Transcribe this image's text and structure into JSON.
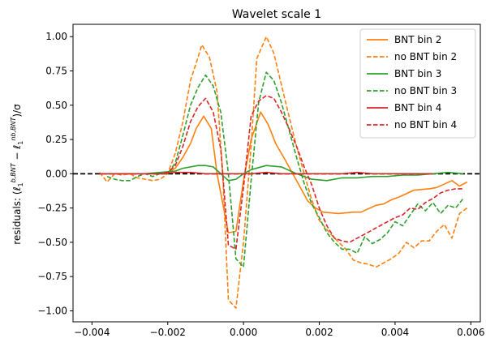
{
  "chart_data": {
    "type": "line",
    "title": "Wavelet scale 1",
    "xlabel": "",
    "ylabel": "residuals: (ℓ₁^{b,BNT} − ℓ₁^{nb,BNT})/σ",
    "ylabel_parts": {
      "prefix": "residuals: (",
      "ell1": "ℓ",
      "sub1": "1",
      "sup1": "b,BNT",
      "minus": " − ",
      "ell2": "ℓ",
      "sub2": "1",
      "sup2": "nb,BNT",
      "suffix": ")/σ"
    },
    "xlim": [
      -0.0045,
      0.00625
    ],
    "ylim": [
      -1.08,
      1.09
    ],
    "xticks": [
      -0.004,
      -0.002,
      0.0,
      0.002,
      0.004,
      0.006
    ],
    "xtick_labels": [
      "−0.004",
      "−0.002",
      "0.000",
      "0.002",
      "0.004",
      "0.006"
    ],
    "yticks": [
      -1.0,
      -0.75,
      -0.5,
      -0.25,
      0.0,
      0.25,
      0.5,
      0.75,
      1.0
    ],
    "ytick_labels": [
      "−1.00",
      "−0.75",
      "−0.50",
      "−0.25",
      "0.00",
      "0.25",
      "0.50",
      "0.75",
      "1.00"
    ],
    "grid": false,
    "legend_position": "top-right",
    "reference_line": {
      "y": 0.0,
      "style": "dashed",
      "color": "#000000"
    },
    "series": [
      {
        "name": "BNT bin 2",
        "color": "#ff7f0e",
        "style": "solid",
        "x": [
          -0.00205,
          -0.0018,
          -0.0016,
          -0.0014,
          -0.00125,
          -0.00105,
          -0.00085,
          -0.0007,
          -0.0004,
          -0.0002,
          0.0,
          0.0002,
          0.00045,
          0.00065,
          0.00085,
          0.0011,
          0.0013,
          0.0015,
          0.0017,
          0.0019,
          0.0021,
          0.0025,
          0.0029,
          0.0031,
          0.0035,
          0.0037,
          0.0039,
          0.0041,
          0.0045,
          0.0049,
          0.0051,
          0.0055,
          0.0057,
          0.0059
        ],
        "y": [
          0.0,
          0.04,
          0.12,
          0.22,
          0.33,
          0.42,
          0.33,
          0.0,
          -0.43,
          -0.42,
          -0.05,
          0.25,
          0.45,
          0.36,
          0.22,
          0.1,
          0.0,
          -0.1,
          -0.2,
          -0.25,
          -0.28,
          -0.29,
          -0.28,
          -0.28,
          -0.23,
          -0.22,
          -0.19,
          -0.17,
          -0.12,
          -0.11,
          -0.1,
          -0.05,
          -0.09,
          -0.06
        ]
      },
      {
        "name": "no BNT bin 2",
        "color": "#ff7f0e",
        "style": "dashed",
        "x": [
          -0.0038,
          -0.0036,
          -0.0034,
          -0.0032,
          -0.003,
          -0.0028,
          -0.0026,
          -0.0024,
          -0.0022,
          -0.002,
          -0.0018,
          -0.0016,
          -0.0014,
          -0.0012,
          -0.0011,
          -0.0009,
          -0.0007,
          -0.00055,
          -0.0004,
          -0.0002,
          0.0,
          0.0002,
          0.00035,
          0.0006,
          0.0008,
          0.001,
          0.0012,
          0.0014,
          0.0016,
          0.0018,
          0.002,
          0.0023,
          0.0027,
          0.0029,
          0.0031,
          0.0033,
          0.0035,
          0.0037,
          0.0039,
          0.0041,
          0.0043,
          0.0045,
          0.0047,
          0.0049,
          0.0051,
          0.0053,
          0.0055,
          0.0057,
          0.0059
        ],
        "y": [
          0.01,
          -0.06,
          0.0,
          -0.01,
          0.0,
          -0.03,
          -0.04,
          -0.05,
          -0.04,
          0.0,
          0.15,
          0.38,
          0.68,
          0.85,
          0.94,
          0.85,
          0.6,
          0.0,
          -0.92,
          -0.98,
          -0.5,
          0.2,
          0.84,
          1.0,
          0.88,
          0.65,
          0.42,
          0.2,
          0.0,
          -0.19,
          -0.34,
          -0.44,
          -0.55,
          -0.63,
          -0.65,
          -0.66,
          -0.68,
          -0.65,
          -0.62,
          -0.58,
          -0.5,
          -0.54,
          -0.49,
          -0.49,
          -0.42,
          -0.37,
          -0.47,
          -0.29,
          -0.25
        ]
      },
      {
        "name": "BNT bin 3",
        "color": "#2ca02c",
        "style": "solid",
        "x": [
          -0.0038,
          -0.0034,
          -0.003,
          -0.0026,
          -0.0022,
          -0.0018,
          -0.0016,
          -0.0012,
          -0.001,
          -0.0008,
          -0.0006,
          -0.0004,
          -0.0002,
          0.0,
          0.0002,
          0.0006,
          0.001,
          0.0014,
          0.0018,
          0.0022,
          0.0026,
          0.003,
          0.0034,
          0.0038,
          0.0042,
          0.0046,
          0.005,
          0.0054,
          0.0058
        ],
        "y": [
          0.0,
          0.0,
          0.0,
          0.0,
          0.01,
          0.02,
          0.04,
          0.06,
          0.06,
          0.05,
          0.0,
          -0.05,
          -0.04,
          0.0,
          0.03,
          0.06,
          0.05,
          0.0,
          -0.04,
          -0.05,
          -0.03,
          -0.03,
          -0.02,
          -0.02,
          -0.01,
          -0.01,
          0.0,
          0.01,
          0.0
        ]
      },
      {
        "name": "no BNT bin 3",
        "color": "#2ca02c",
        "style": "dashed",
        "x": [
          -0.0036,
          -0.0034,
          -0.0032,
          -0.003,
          -0.0028,
          -0.0026,
          -0.0024,
          -0.0022,
          -0.002,
          -0.0018,
          -0.0016,
          -0.0014,
          -0.0012,
          -0.001,
          -0.0008,
          -0.0006,
          -0.0004,
          -0.0002,
          0.0,
          0.0002,
          0.0004,
          0.0006,
          0.0008,
          0.001,
          0.0012,
          0.0014,
          0.0016,
          0.0018,
          0.002,
          0.0022,
          0.0024,
          0.0026,
          0.0028,
          0.003,
          0.0032,
          0.0034,
          0.0036,
          0.0038,
          0.004,
          0.0042,
          0.0044,
          0.0046,
          0.0048,
          0.005,
          0.0052,
          0.0054,
          0.0056,
          0.0058
        ],
        "y": [
          -0.02,
          -0.04,
          -0.05,
          -0.05,
          -0.02,
          0.0,
          -0.02,
          0.0,
          0.0,
          0.08,
          0.28,
          0.5,
          0.63,
          0.72,
          0.64,
          0.45,
          0.0,
          -0.62,
          -0.68,
          -0.05,
          0.52,
          0.74,
          0.68,
          0.52,
          0.32,
          0.12,
          -0.07,
          -0.22,
          -0.32,
          -0.43,
          -0.5,
          -0.55,
          -0.55,
          -0.58,
          -0.46,
          -0.51,
          -0.48,
          -0.43,
          -0.35,
          -0.38,
          -0.3,
          -0.22,
          -0.27,
          -0.21,
          -0.29,
          -0.23,
          -0.25,
          -0.18
        ]
      },
      {
        "name": "BNT bin 4",
        "color": "#d62728",
        "style": "solid",
        "x": [
          -0.0038,
          -0.0034,
          -0.003,
          -0.0026,
          -0.0022,
          -0.0018,
          -0.0014,
          -0.001,
          -0.0006,
          -0.0002,
          0.0002,
          0.0006,
          0.001,
          0.0014,
          0.0018,
          0.0022,
          0.0026,
          0.003,
          0.0034,
          0.0038,
          0.0042,
          0.0046,
          0.005
        ],
        "y": [
          0.0,
          0.0,
          0.0,
          0.0,
          0.0,
          0.01,
          0.01,
          0.0,
          0.0,
          0.0,
          0.0,
          0.01,
          0.0,
          0.0,
          0.0,
          0.0,
          0.0,
          0.01,
          0.0,
          0.0,
          0.0,
          0.0,
          0.0
        ]
      },
      {
        "name": "no BNT bin 4",
        "color": "#d62728",
        "style": "dashed",
        "x": [
          -0.0038,
          -0.0034,
          -0.003,
          -0.0026,
          -0.0022,
          -0.002,
          -0.0018,
          -0.0016,
          -0.0014,
          -0.0012,
          -0.001,
          -0.0008,
          -0.0006,
          -0.0004,
          -0.0002,
          0.0,
          0.0002,
          0.0004,
          0.0006,
          0.0008,
          0.001,
          0.0012,
          0.0014,
          0.0016,
          0.0018,
          0.002,
          0.0022,
          0.0024,
          0.0026,
          0.0028,
          0.003,
          0.0032,
          0.0034,
          0.0036,
          0.0038,
          0.004,
          0.0042,
          0.0044,
          0.0046,
          0.0048,
          0.005,
          0.0052,
          0.0054,
          0.0056,
          0.0058
        ],
        "y": [
          0.0,
          0.0,
          0.0,
          0.0,
          0.0,
          0.01,
          0.06,
          0.2,
          0.38,
          0.49,
          0.55,
          0.45,
          0.18,
          -0.52,
          -0.55,
          -0.1,
          0.42,
          0.53,
          0.57,
          0.55,
          0.45,
          0.33,
          0.2,
          0.05,
          -0.08,
          -0.25,
          -0.38,
          -0.47,
          -0.49,
          -0.5,
          -0.47,
          -0.44,
          -0.41,
          -0.38,
          -0.35,
          -0.32,
          -0.3,
          -0.25,
          -0.26,
          -0.21,
          -0.18,
          -0.14,
          -0.12,
          -0.11,
          -0.11
        ]
      }
    ]
  }
}
